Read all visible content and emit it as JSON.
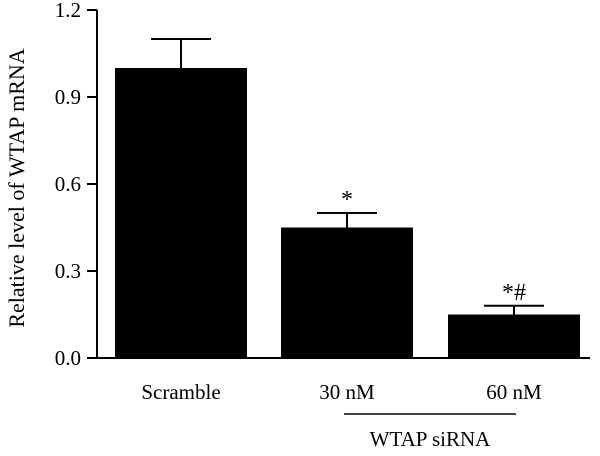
{
  "chart_data": {
    "type": "bar",
    "title": "",
    "xlabel": "",
    "ylabel": "Relative level of WTAP mRNA",
    "ylim": [
      0,
      1.2
    ],
    "yticks": [
      "0.0",
      "0.3",
      "0.6",
      "0.9",
      "1.2"
    ],
    "categories": [
      "Scramble",
      "30 nM",
      "60 nM"
    ],
    "values": [
      1.0,
      0.45,
      0.15
    ],
    "errors": [
      0.1,
      0.05,
      0.03
    ],
    "annotations": [
      "",
      "*",
      "*#"
    ],
    "group_label": "WTAP siRNA",
    "bar_color": "#000000",
    "grid": false,
    "legend": "none"
  }
}
